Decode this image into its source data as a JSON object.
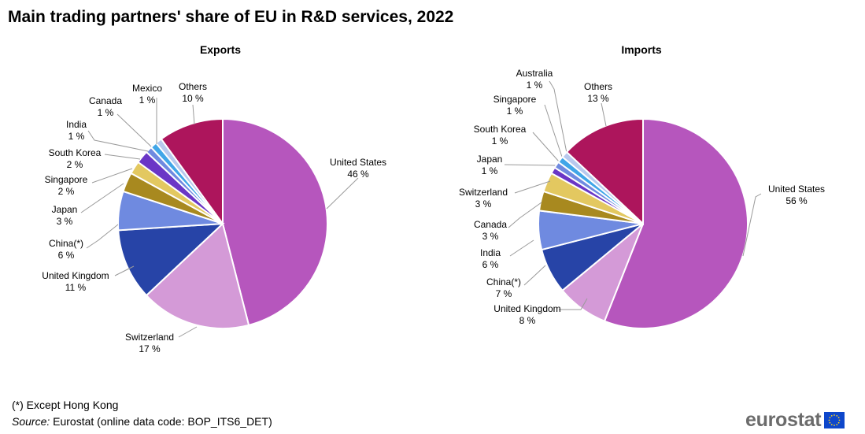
{
  "title": "Main trading partners' share of EU in R&D services, 2022",
  "footnote": "(*) Except Hong Kong",
  "source_label": "Source:",
  "source_text": " Eurostat (online data code: BOP_ITS6_DET)",
  "logo_text": "eurostat",
  "colors": {
    "United States": "#b656bd",
    "Switzerland": "#d49ad7",
    "United Kingdom": "#2744a7",
    "China(*)": "#2744a7",
    "Japan": "#a8891f",
    "Singapore": "#e3c860",
    "South Korea": "#6a36c6",
    "India": "#6f8ae0",
    "Canada": "#a8891f",
    "Mexico": "#6f8ae0",
    "Australia": "#8eb0ec",
    "Others": "#ad155c"
  },
  "chart_data": [
    {
      "type": "pie",
      "title": "Exports",
      "unit": "%",
      "slices": [
        {
          "label": "United States",
          "value": 46,
          "color": "#b656bd"
        },
        {
          "label": "Switzerland",
          "value": 17,
          "color": "#d49ad7"
        },
        {
          "label": "United Kingdom",
          "value": 11,
          "color": "#2744a7"
        },
        {
          "label": "China(*)",
          "value": 6,
          "color": "#6f8ae0"
        },
        {
          "label": "Japan",
          "value": 3,
          "color": "#a8891f"
        },
        {
          "label": "Singapore",
          "value": 2,
          "color": "#e3c860"
        },
        {
          "label": "South Korea",
          "value": 2,
          "color": "#6a36c6"
        },
        {
          "label": "India",
          "value": 1,
          "color": "#6f8ae0"
        },
        {
          "label": "Canada",
          "value": 1,
          "color": "#41a6e8"
        },
        {
          "label": "Mexico",
          "value": 1,
          "color": "#b8c9ee"
        },
        {
          "label": "Others",
          "value": 10,
          "color": "#ad155c"
        }
      ]
    },
    {
      "type": "pie",
      "title": "Imports",
      "unit": "%",
      "slices": [
        {
          "label": "United States",
          "value": 56,
          "color": "#b656bd"
        },
        {
          "label": "United Kingdom",
          "value": 8,
          "color": "#d49ad7"
        },
        {
          "label": "China(*)",
          "value": 7,
          "color": "#2744a7"
        },
        {
          "label": "India",
          "value": 6,
          "color": "#6f8ae0"
        },
        {
          "label": "Canada",
          "value": 3,
          "color": "#a8891f"
        },
        {
          "label": "Switzerland",
          "value": 3,
          "color": "#e3c860"
        },
        {
          "label": "Japan",
          "value": 1,
          "color": "#6a36c6"
        },
        {
          "label": "South Korea",
          "value": 1,
          "color": "#6f8ae0"
        },
        {
          "label": "Singapore",
          "value": 1,
          "color": "#41a6e8"
        },
        {
          "label": "Australia",
          "value": 1,
          "color": "#b8c9ee"
        },
        {
          "label": "Others",
          "value": 13,
          "color": "#ad155c"
        }
      ]
    }
  ]
}
